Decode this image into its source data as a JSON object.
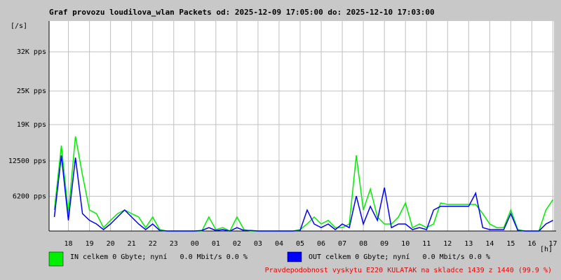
{
  "chart_data": {
    "type": "line",
    "title": "Graf provozu loudilova_wlan Packets od: 2025-12-09 17:05:00 do: 2025-12-10 17:03:00",
    "ylabel": "[/s]",
    "xlabel": "[h]",
    "xlim": [
      0.083,
      24.05
    ],
    "xticks": [
      {
        "value": 1,
        "label": "18"
      },
      {
        "value": 2,
        "label": "19"
      },
      {
        "value": 3,
        "label": "20"
      },
      {
        "value": 4,
        "label": "21"
      },
      {
        "value": 5,
        "label": "22"
      },
      {
        "value": 6,
        "label": "23"
      },
      {
        "value": 7,
        "label": "00"
      },
      {
        "value": 8,
        "label": "01"
      },
      {
        "value": 9,
        "label": "02"
      },
      {
        "value": 10,
        "label": "03"
      },
      {
        "value": 11,
        "label": "04"
      },
      {
        "value": 12,
        "label": "05"
      },
      {
        "value": 13,
        "label": "06"
      },
      {
        "value": 14,
        "label": "07"
      },
      {
        "value": 15,
        "label": "08"
      },
      {
        "value": 16,
        "label": "09"
      },
      {
        "value": 17,
        "label": "10"
      },
      {
        "value": 18,
        "label": "11"
      },
      {
        "value": 19,
        "label": "12"
      },
      {
        "value": 20,
        "label": "13"
      },
      {
        "value": 21,
        "label": "14"
      },
      {
        "value": 22,
        "label": "15"
      },
      {
        "value": 23,
        "label": "16"
      },
      {
        "value": 24,
        "label": "17"
      }
    ],
    "ylim": [
      0,
      37500
    ],
    "yticks": [
      {
        "value": 6200,
        "label": "6200 pps"
      },
      {
        "value": 12500,
        "label": "12500 pps"
      },
      {
        "value": 19000,
        "label": "19K pps"
      },
      {
        "value": 25000,
        "label": "25K pps"
      },
      {
        "value": 32000,
        "label": "32K pps"
      }
    ],
    "grid": true,
    "x": [
      0.333,
      0.667,
      1,
      1.333,
      1.667,
      2,
      2.333,
      2.667,
      3,
      3.333,
      3.667,
      4,
      4.333,
      4.667,
      5,
      5.333,
      5.667,
      6,
      6.333,
      6.667,
      7,
      7.333,
      7.667,
      8,
      8.333,
      8.667,
      9,
      9.333,
      9.667,
      10,
      10.333,
      10.667,
      11,
      11.333,
      11.667,
      12,
      12.333,
      12.667,
      13,
      13.333,
      13.667,
      14,
      14.333,
      14.667,
      15,
      15.333,
      15.667,
      16,
      16.333,
      16.667,
      17,
      17.333,
      17.667,
      18,
      18.333,
      18.667,
      19,
      19.333,
      19.667,
      20,
      20.333,
      20.667,
      21,
      21.333,
      21.667,
      22,
      22.333,
      22.667,
      23,
      23.333,
      23.667,
      24
    ],
    "series": [
      {
        "name": "IN celkem 0 Gbyte; nyní   0.0 Mbit/s 0.0 %",
        "color": "#00ee00",
        "values": [
          3750,
          15250,
          3100,
          16900,
          10000,
          3750,
          3100,
          600,
          1900,
          3100,
          3750,
          3100,
          2500,
          600,
          2500,
          250,
          0,
          0,
          0,
          0,
          0,
          0,
          2500,
          250,
          600,
          0,
          2500,
          250,
          0,
          0,
          0,
          0,
          0,
          0,
          0,
          250,
          1250,
          2500,
          1250,
          1900,
          600,
          600,
          1250,
          13500,
          3750,
          7500,
          2500,
          1250,
          1250,
          2500,
          5000,
          600,
          1250,
          600,
          1250,
          5000,
          4750,
          4750,
          4750,
          4750,
          4750,
          3100,
          1250,
          600,
          600,
          3750,
          250,
          0,
          0,
          0,
          3750,
          5600
        ]
      },
      {
        "name": "OUT celkem 0 Gbyte; nyní   0.0 Mbit/s 0.0 %",
        "color": "#0000ff",
        "values": [
          2500,
          13500,
          1900,
          13100,
          3100,
          1900,
          1250,
          250,
          1250,
          2500,
          3750,
          2500,
          1250,
          250,
          1250,
          100,
          0,
          0,
          0,
          0,
          0,
          100,
          600,
          100,
          250,
          0,
          600,
          100,
          100,
          0,
          0,
          0,
          0,
          0,
          0,
          100,
          3750,
          1250,
          600,
          1250,
          250,
          1250,
          600,
          6250,
          1250,
          4400,
          1900,
          7750,
          600,
          1250,
          1250,
          250,
          600,
          250,
          3750,
          4400,
          4400,
          4400,
          4400,
          4400,
          6750,
          600,
          250,
          250,
          250,
          3100,
          100,
          0,
          0,
          0,
          1250,
          1900
        ]
      }
    ],
    "footer": "Pravdepodobnost vyskytu E220 KULATAK na skladce 1439 z 1440 (99.9 %)",
    "footer_color": "#ee0000"
  }
}
